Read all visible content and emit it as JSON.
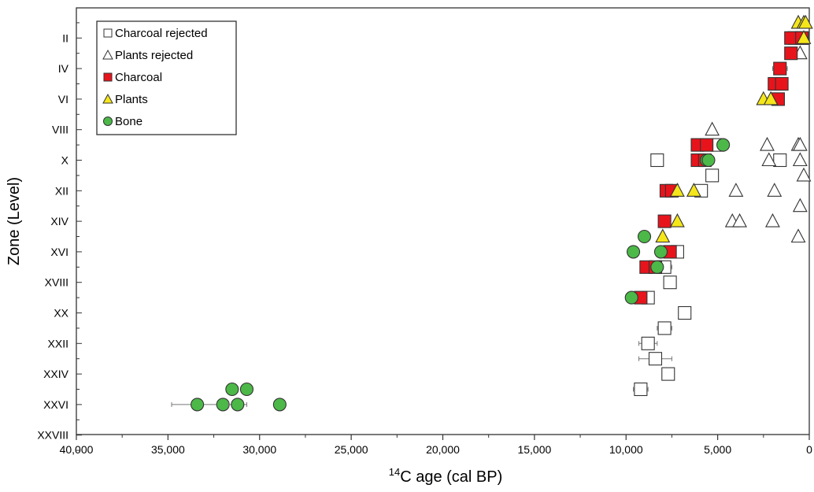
{
  "chart_data": {
    "type": "scatter",
    "xlabel": "C age (cal BP)",
    "xlabel_superscript": "14",
    "ylabel": "Zone (Level)",
    "xlim": [
      40000,
      0
    ],
    "x_ticks": [
      40000,
      35000,
      30000,
      25000,
      20000,
      15000,
      10000,
      5000,
      0
    ],
    "x_tick_labels": [
      "40,000",
      "35,000",
      "30,000",
      "25,000",
      "20,000",
      "15,000",
      "10,000",
      "5,000",
      "0"
    ],
    "y_categories": [
      "II",
      "IV",
      "VI",
      "VIII",
      "X",
      "XII",
      "XIV",
      "XVI",
      "XVIII",
      "XX",
      "XXII",
      "XXIV",
      "XXVI",
      "XXVIII"
    ],
    "y_min_level": 1,
    "y_max_level": 29,
    "legend_placement": "top-left",
    "colors": {
      "charcoal": "#e8141c",
      "plants": "#f5e61a",
      "bone": "#4cb848",
      "rejected": "#ffffff",
      "outline": "#333333"
    },
    "series": [
      {
        "name": "Charcoal rejected",
        "marker": "square-open",
        "points": [
          {
            "x": 5000,
            "level": 9
          },
          {
            "x": 8300,
            "level": 10
          },
          {
            "x": 1600,
            "level": 10
          },
          {
            "x": 5300,
            "level": 11
          },
          {
            "x": 5900,
            "level": 12
          },
          {
            "x": 7200,
            "level": 16,
            "err": 300
          },
          {
            "x": 7900,
            "level": 17,
            "err": 400
          },
          {
            "x": 7600,
            "level": 18,
            "err": 300
          },
          {
            "x": 8800,
            "level": 19,
            "err": 300
          },
          {
            "x": 6800,
            "level": 20,
            "err": 300
          },
          {
            "x": 7900,
            "level": 21,
            "err": 400
          },
          {
            "x": 8800,
            "level": 22,
            "err": 500
          },
          {
            "x": 8400,
            "level": 23,
            "err": 900
          },
          {
            "x": 7700,
            "level": 24
          },
          {
            "x": 9200,
            "level": 25,
            "err": 400
          }
        ]
      },
      {
        "name": "Plants rejected",
        "marker": "triangle-open",
        "points": [
          {
            "x": 500,
            "level": 3
          },
          {
            "x": 5300,
            "level": 8
          },
          {
            "x": 2300,
            "level": 9
          },
          {
            "x": 600,
            "level": 9
          },
          {
            "x": 500,
            "level": 9
          },
          {
            "x": 2200,
            "level": 10
          },
          {
            "x": 500,
            "level": 10
          },
          {
            "x": 300,
            "level": 11
          },
          {
            "x": 4000,
            "level": 12
          },
          {
            "x": 1900,
            "level": 12
          },
          {
            "x": 500,
            "level": 13
          },
          {
            "x": 4200,
            "level": 14
          },
          {
            "x": 3800,
            "level": 14
          },
          {
            "x": 2000,
            "level": 14
          },
          {
            "x": 600,
            "level": 15
          }
        ]
      },
      {
        "name": "Charcoal",
        "marker": "square",
        "points": [
          {
            "x": 800,
            "level": 2
          },
          {
            "x": 400,
            "level": 2
          },
          {
            "x": 1000,
            "level": 2
          },
          {
            "x": 400,
            "level": 2
          },
          {
            "x": 1000,
            "level": 3
          },
          {
            "x": 1600,
            "level": 4,
            "err": 400
          },
          {
            "x": 1900,
            "level": 5
          },
          {
            "x": 1500,
            "level": 5
          },
          {
            "x": 1700,
            "level": 6
          },
          {
            "x": 6100,
            "level": 9
          },
          {
            "x": 5600,
            "level": 9
          },
          {
            "x": 6100,
            "level": 10
          },
          {
            "x": 5700,
            "level": 10
          },
          {
            "x": 7800,
            "level": 12
          },
          {
            "x": 7500,
            "level": 12
          },
          {
            "x": 7900,
            "level": 14
          },
          {
            "x": 7600,
            "level": 16
          },
          {
            "x": 8900,
            "level": 17
          },
          {
            "x": 8400,
            "level": 17
          },
          {
            "x": 9200,
            "level": 19
          }
        ]
      },
      {
        "name": "Plants",
        "marker": "triangle",
        "points": [
          {
            "x": 600,
            "level": 1
          },
          {
            "x": 300,
            "level": 1
          },
          {
            "x": 200,
            "level": 1
          },
          {
            "x": 300,
            "level": 2
          },
          {
            "x": 2500,
            "level": 6
          },
          {
            "x": 2100,
            "level": 6
          },
          {
            "x": 7200,
            "level": 12
          },
          {
            "x": 6300,
            "level": 12
          },
          {
            "x": 7200,
            "level": 14
          },
          {
            "x": 8000,
            "level": 15
          }
        ]
      },
      {
        "name": "Bone",
        "marker": "circle",
        "points": [
          {
            "x": 4700,
            "level": 9
          },
          {
            "x": 5600,
            "level": 10
          },
          {
            "x": 5500,
            "level": 10
          },
          {
            "x": 9000,
            "level": 15
          },
          {
            "x": 9600,
            "level": 16
          },
          {
            "x": 8100,
            "level": 16
          },
          {
            "x": 8300,
            "level": 17
          },
          {
            "x": 9700,
            "level": 19
          },
          {
            "x": 31500,
            "level": 25
          },
          {
            "x": 30700,
            "level": 25
          },
          {
            "x": 33400,
            "level": 26,
            "err": 1400
          },
          {
            "x": 32000,
            "level": 26
          },
          {
            "x": 31200,
            "level": 26,
            "err": 500
          },
          {
            "x": 28900,
            "level": 26
          }
        ]
      }
    ]
  }
}
